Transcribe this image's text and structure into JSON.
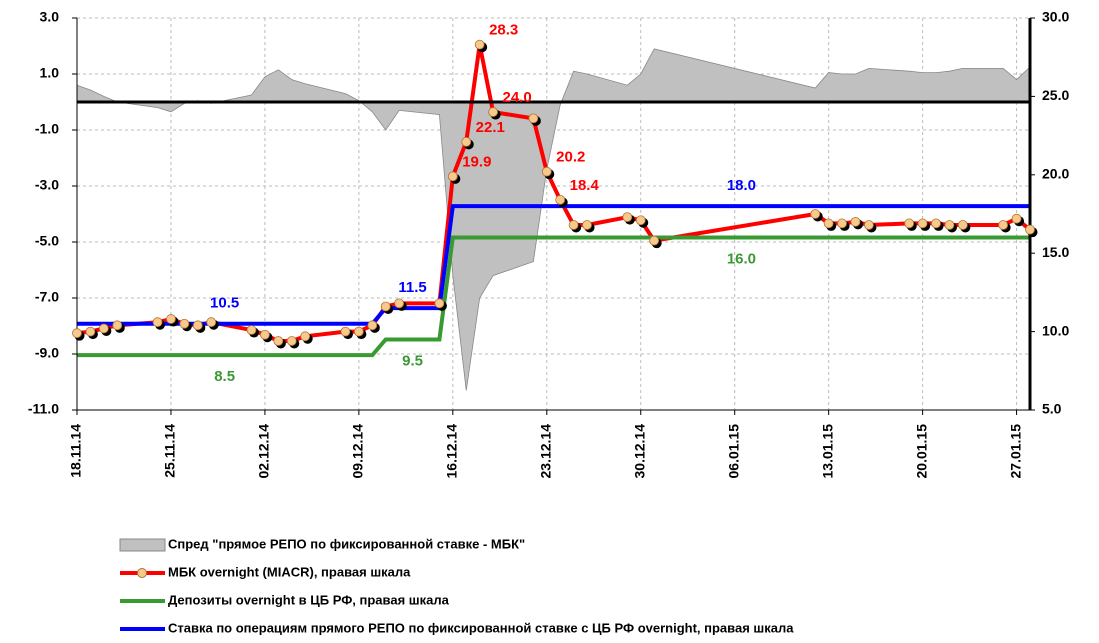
{
  "chart_data": {
    "type": "line",
    "x": [
      "18.11.14",
      "19.11.14",
      "20.11.14",
      "21.11.14",
      "24.11.14",
      "25.11.14",
      "26.11.14",
      "27.11.14",
      "28.11.14",
      "01.12.14",
      "02.12.14",
      "03.12.14",
      "04.12.14",
      "05.12.14",
      "08.12.14",
      "09.12.14",
      "10.12.14",
      "11.12.14",
      "12.12.14",
      "15.12.14",
      "16.12.14",
      "17.12.14",
      "18.12.14",
      "19.12.14",
      "22.12.14",
      "23.12.14",
      "24.12.14",
      "25.12.14",
      "26.12.14",
      "29.12.14",
      "30.12.14",
      "31.12.14",
      "12.01.15",
      "13.01.15",
      "14.01.15",
      "15.01.15",
      "16.01.15",
      "19.01.15",
      "20.01.15",
      "21.01.15",
      "22.01.15",
      "23.01.15",
      "26.01.15",
      "27.01.15",
      "28.01.15"
    ],
    "xlim": [
      "18.11.14",
      "28.01.15"
    ],
    "xticks": [
      "18.11.14",
      "25.11.14",
      "02.12.14",
      "09.12.14",
      "16.12.14",
      "23.12.14",
      "30.12.14",
      "06.01.15",
      "13.01.15",
      "20.01.15",
      "27.01.15"
    ],
    "ylim": [
      -11,
      3
    ],
    "yticks": [
      {
        "value": -11,
        "label": "-11.0"
      },
      {
        "value": -9,
        "label": "-9.0"
      },
      {
        "value": -7,
        "label": "-7.0"
      },
      {
        "value": -5,
        "label": "-5.0"
      },
      {
        "value": -3,
        "label": "-3.0"
      },
      {
        "value": -1,
        "label": "-1.0"
      },
      {
        "value": 1,
        "label": "1.0"
      },
      {
        "value": 3,
        "label": "3.0"
      }
    ],
    "y2lim": [
      5,
      30
    ],
    "y2ticks": [
      {
        "value": 5,
        "label": "5.0"
      },
      {
        "value": 10,
        "label": "10.0"
      },
      {
        "value": 15,
        "label": "15.0"
      },
      {
        "value": 20,
        "label": "20.0"
      },
      {
        "value": 25,
        "label": "25.0"
      },
      {
        "value": 30,
        "label": "30.0"
      }
    ],
    "grid": true,
    "legend": "bottom",
    "series": [
      {
        "name": "Спред \"прямое РЕПО по фиксированной ставке - МБК\"",
        "kind": "area",
        "color": "#c0c0c0",
        "values": [
          0.6,
          0.43,
          0.2,
          0.0,
          -0.2,
          -0.35,
          -0.05,
          0.05,
          -0.05,
          0.25,
          0.9,
          1.15,
          0.8,
          0.65,
          0.3,
          0.05,
          -0.35,
          -1.0,
          -0.3,
          -0.45,
          -6.2,
          -10.3,
          -7.0,
          -6.2,
          -5.7,
          -2.4,
          -0.1,
          1.1,
          1.0,
          0.6,
          1.0,
          1.9,
          0.5,
          1.05,
          1.0,
          1.0,
          1.2,
          1.1,
          1.05,
          1.05,
          1.1,
          1.2,
          1.2,
          0.8,
          1.25
        ]
      },
      {
        "name": "МБК overnight (MIACR), правая шкала",
        "kind": "line",
        "axis": "y2",
        "color": "#ff0000",
        "marker_color": "#f7c98c",
        "values": [
          9.9,
          10.0,
          10.2,
          10.4,
          10.6,
          10.8,
          10.5,
          10.4,
          10.6,
          10.1,
          9.8,
          9.4,
          9.4,
          9.7,
          10.0,
          10.0,
          10.4,
          11.6,
          11.8,
          11.8,
          19.9,
          22.1,
          28.3,
          24.0,
          23.6,
          20.2,
          18.4,
          16.8,
          16.8,
          17.3,
          17.1,
          15.8,
          17.5,
          16.9,
          16.9,
          17.0,
          16.8,
          16.9,
          16.9,
          16.9,
          16.8,
          16.8,
          16.8,
          17.2,
          16.5
        ],
        "value_labels": [
          null,
          null,
          null,
          null,
          null,
          null,
          null,
          null,
          null,
          null,
          null,
          null,
          null,
          null,
          null,
          null,
          null,
          null,
          null,
          null,
          "19.9",
          "22.1",
          "28.3",
          "24.0",
          null,
          "20.2",
          "18.4",
          null,
          null,
          null,
          null,
          null,
          null,
          null,
          null,
          null,
          null,
          null,
          null,
          null,
          null,
          null,
          null,
          null,
          null
        ]
      },
      {
        "name": "Депозиты overnight в ЦБ РФ, правая шкала",
        "kind": "line",
        "axis": "y2",
        "color": "#3a9a32",
        "x": [
          "18.11.14",
          "10.12.14",
          "11.12.14",
          "15.12.14",
          "16.12.14",
          "28.01.15"
        ],
        "values": [
          8.5,
          8.5,
          9.5,
          9.5,
          16,
          16
        ],
        "value_labels": [
          "8.5",
          null,
          "9.5",
          null,
          "16.0",
          null
        ]
      },
      {
        "name": "Ставка по операциям прямого РЕПО по фиксированной ставке с ЦБ РФ overnight, правая шкала",
        "kind": "line",
        "axis": "y2",
        "color": "#0000ff",
        "x": [
          "18.11.14",
          "10.12.14",
          "11.12.14",
          "15.12.14",
          "16.12.14",
          "28.01.15"
        ],
        "values": [
          10.5,
          10.5,
          11.5,
          11.5,
          18,
          18
        ],
        "value_labels": [
          "10.5",
          null,
          "11.5",
          null,
          "18.0",
          null
        ]
      }
    ]
  }
}
